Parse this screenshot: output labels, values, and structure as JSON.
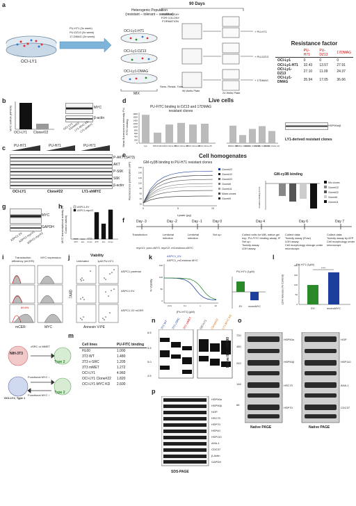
{
  "panels": {
    "a": "a",
    "b": "b",
    "c": "c",
    "d": "d",
    "e": "e",
    "f": "f",
    "g": "g",
    "h": "h",
    "i": "i",
    "j": "j",
    "k": "k",
    "l": "l",
    "m": "m",
    "n": "n",
    "o": "o",
    "p": "p"
  },
  "a": {
    "dish_label": "OCI-LY1",
    "arrows": [
      "PU-H71 (3x week)",
      "PU-DZ13 (3x week)",
      "17-DMAG (3x week)"
    ],
    "title": "Heterogenic Population\n(resistant – tolerant – sensitive)",
    "days": "90 Days",
    "assay": "AGAR ASSAY FOR COLONY FORMATION",
    "lines": [
      "OCI-Ly1-H71",
      "OCI-Ly1-DZ13",
      "OCI-Ly1-DMAG"
    ],
    "mix": "MIX",
    "sens": "Sens.  Resist.  Toler.",
    "plate96": "96 Wells Plate",
    "plate24": "24 Wells Plate",
    "adds": [
      "+ PU-H71",
      "+ PU-DZ13",
      "+ 17DMAG"
    ],
    "rf_title": "Resistance factor",
    "rf_cols": [
      "PU-H71",
      "PU-DZ13",
      "17DMAG"
    ],
    "rf_rows": [
      {
        "name": "OCI-Ly1",
        "v": [
          "0",
          "0",
          "0"
        ]
      },
      {
        "name": "OCI-Ly1-H71",
        "v": [
          "32.43",
          "13.57",
          "27.91"
        ]
      },
      {
        "name": "OCI-Ly1-DZ13",
        "v": [
          "27.10",
          "11.09",
          "24.37"
        ]
      },
      {
        "name": "OCI-Ly1-DMAG",
        "v": [
          "35.94",
          "17.05",
          "36.66"
        ]
      }
    ]
  },
  "b": {
    "ylabel": "MYC mRNA (RPKM)",
    "bars": [
      "OCI-LY1",
      "Clone#22"
    ],
    "values": [
      100,
      22
    ],
    "blot_labels": [
      "MYC",
      "β-actin"
    ],
    "lanes": [
      "OCI-LY1",
      "Clone#22",
      "LY1-MYC KD",
      "LY1-shMYC"
    ]
  },
  "c": {
    "drugs": [
      "PU-H71",
      "PU-H71",
      "PU-H71"
    ],
    "doses": [
      "0",
      "0.05",
      "0.1",
      "0.5",
      "1"
    ],
    "rows": [
      "P-AKT (S473)",
      "AKT",
      "P-S6K",
      "S6K",
      "β-actin"
    ],
    "groups": [
      "OCI-LY1",
      "Clone#22",
      "LY1-shMYC"
    ]
  },
  "d": {
    "title": "Live cells",
    "left_title": "PU-FITC binding to DZ13 and 17DMAG resistant clones",
    "ylabel": "Mean fluorescence intensity PU-FITC binding",
    "yticks": [
      "1800",
      "1600",
      "1400",
      "1200",
      "1000",
      "800",
      "600",
      "400",
      "200",
      "0"
    ],
    "left_cats": [
      "Ly1",
      "DZ13 Mix",
      "DZ13 Clone 15",
      "DZ13 Clone 16",
      "DZ13 Clone 22",
      "DZ13 Clone 25"
    ],
    "left_vals": [
      1750,
      650,
      1150,
      1250,
      1150,
      1200
    ],
    "right_cats": [
      "DMAG Mix",
      "DMAG Clone 6",
      "DMAG Clone 10",
      "DMAG Clone 11",
      "DMAG Clone 12"
    ],
    "right_vals": [
      1080,
      500,
      880,
      1050,
      750
    ],
    "blot_label": "HSP90α/β",
    "blot_lanes": [
      "OCI-LY1",
      "DZ mixed",
      "DZ clone15",
      "DZ clone16",
      "DZ clone22",
      "DZ clone25",
      "DMAG mixed",
      "DMAG clone6",
      "DMAG clone10",
      "DMAG clone11",
      "DMAG clone12"
    ],
    "sub": "LY1-derived resistant clones"
  },
  "e": {
    "title": "Cell homogenates",
    "subtitle": "GM-cy3B binding to PU-H71 resistant clones",
    "ylabel": "Fluorescence polarization (mP)",
    "xlabel": "Lysate (μg)",
    "yticks": [
      "160",
      "140",
      "120",
      "100",
      "80",
      "60",
      "40",
      "20"
    ],
    "xticks": [
      "0",
      "5",
      "10"
    ],
    "legend": [
      "Clone#22",
      "Clone#12",
      "Clone#22",
      "Clone#6",
      "Clone#11",
      "Mixed clones",
      "Clone#9"
    ],
    "inset_title": "GM-cy3B binding",
    "inset_legend": [
      "Mix clones",
      "Clone#12",
      "Clone#22",
      "Clone#6",
      "Clone#11"
    ],
    "inset_ylabel": "Deviation in binding (% mix)"
  },
  "f": {
    "days": [
      "Day -3",
      "Day -2",
      "Day -1",
      "Day 0",
      "Day 4",
      "Day 6",
      "Day 7"
    ],
    "events": [
      "Transfection",
      "Lentiviral infection",
      "Lentiviral infection",
      "Set up:",
      "Collect cells for WB, native gel exp, PU-FITC binding assay, IF\nSet up:\nToxicity assay\nLDH assay",
      "Collect data:\nToxicity assay (Flow)\nLDH assay\nCell morphology change under microscope",
      "Collect data:\nToxicity assay by ATP\nCell morphology under microscope"
    ],
    "vectors": "mycV1: puro-cMYC    mycV2: mCerulean-cMYC"
  },
  "g": {
    "labels": [
      "MYC",
      "GAPDH"
    ],
    "lanes": [
      "ASPC1 EV",
      "ASPC1-mycV1",
      "ASPC1-mycV2"
    ]
  },
  "h": {
    "ylabel": "MYC transcriptional activity (% Control Jurkat)",
    "legend": [
      "ASPC1-EV",
      "ASPC1-mycV2"
    ],
    "cats": [
      "ATP",
      "dox",
      "Cmyc",
      "ATP",
      "dox",
      "Cmyc"
    ],
    "values": [
      0.02,
      0.01,
      0.03,
      1.05,
      0.6,
      1.15
    ]
  },
  "i": {
    "col1": "Transduction efficiency (mCER)",
    "col2": "MYC expression",
    "pct": "89.6%",
    "xlabel1": "mCER",
    "xlabel2": "MYC"
  },
  "j": {
    "title": "Viability",
    "cols": [
      "Untreated",
      "1μM PU-H71"
    ],
    "rows": [
      "ASPC1 parental",
      "ASPC1 EV",
      "ASPC1-V2 mCER"
    ],
    "ylabel": "7AAD",
    "xlabel": "Annexin V-PE"
  },
  "k": {
    "legend": [
      "ASPC1_EV",
      "ASPC1_mCerulean MYC"
    ],
    "ylabel": "% Viability",
    "xlabel": "[PU-H71] (μM)",
    "yticks": [
      "150",
      "100",
      "50",
      "0"
    ],
    "xticks": [
      "0.01",
      "0.1",
      "1",
      "10"
    ],
    "bar_title": "PU-H71 (1μM)",
    "bar_cats": [
      "EV",
      "mceruMYC"
    ],
    "bar_vals": [
      15,
      -12
    ]
  },
  "l": {
    "title": "PU-H71 (1μM)",
    "ylabel": "LDH release (% Control)",
    "cats": [
      "EV",
      "mceruMYC"
    ],
    "values": [
      100,
      165
    ],
    "sig": "****",
    "yticks": [
      "200",
      "150",
      "100",
      "50",
      "0"
    ]
  },
  "m": {
    "cells": [
      "NIH-3T3",
      "OCI-LY1; Type 1"
    ],
    "arrows": [
      "vSRC or MMET",
      "Functional MYC ↓",
      "Functional MYC ↑"
    ],
    "types": [
      "Type 2",
      "Type 2"
    ],
    "col1": "Cell lines",
    "col2": "PU-FITC binding",
    "rows": [
      [
        "HL60",
        "1.000"
      ],
      [
        "3T3 WT",
        "1.480"
      ],
      [
        "3T3 v-SRC",
        "1.205"
      ],
      [
        "3T3 mMET",
        "1.272"
      ],
      [
        "OCI-LY1",
        "4.960"
      ],
      [
        "OCI-LY1 Clone#22",
        "1.820"
      ],
      [
        "OCI-LY1-MYC KD",
        "2.600"
      ]
    ]
  },
  "n": {
    "lanes": [
      "3T3 WT",
      "3T3 vSRC",
      "3T3 mMET",
      "OCI-LY1",
      "Clone#22",
      "LY1-MYC KD"
    ],
    "ylabel": "Native IEF / HSP90",
    "ticks": [
      "6.5",
      "5.5",
      "5.0",
      "4.5"
    ]
  },
  "o": {
    "left_rows": [
      "HSP90α",
      "HSP90β",
      "HSC70",
      "HSP70"
    ],
    "right_rows": [
      "HOP",
      "HSP110",
      "AHA-1",
      "CDC37"
    ],
    "footer": [
      "Native PAGE",
      "Native PAGE"
    ],
    "lanes": [
      "3T3 WT",
      "3T3 vSRC",
      "3T3 mMET",
      "OCI-LY1",
      "Clone#22",
      "LY1-MYC KD"
    ],
    "markers": [
      "720",
      "480",
      "242",
      "146",
      "66"
    ]
  },
  "p": {
    "rows": [
      "HSP90α",
      "HSP90β",
      "HOP",
      "HSC70",
      "HSP70",
      "HSP40",
      "HSP110",
      "AHA-1",
      "CDC37",
      "β-Actin",
      "GAPDH"
    ],
    "footer": "SDS-PAGE",
    "lanes": [
      "3T3 WT",
      "3T3 vSRC",
      "3T3 mMET",
      "OCI-LY1",
      "Clone#22",
      "LY1-MYC KD"
    ]
  }
}
